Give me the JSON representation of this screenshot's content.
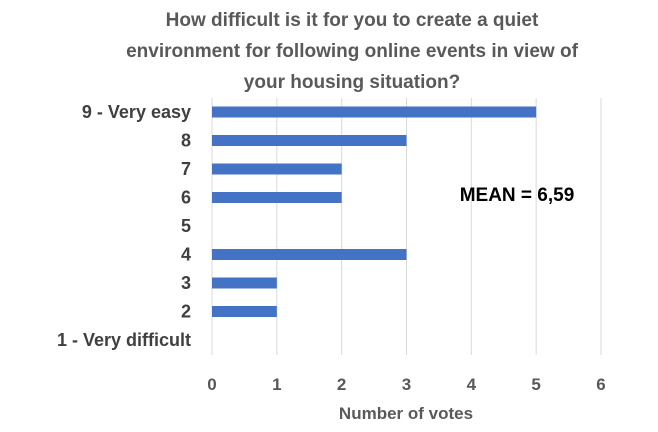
{
  "chart_data": {
    "type": "bar",
    "orientation": "horizontal",
    "title_lines": [
      "How difficult is it for you to create a quiet",
      "environment for following online events in view of",
      "your housing situation?"
    ],
    "categories": [
      "9 - Very easy",
      "8",
      "7",
      "6",
      "5",
      "4",
      "3",
      "2",
      "1 - Very difficult"
    ],
    "values": [
      5,
      3,
      2,
      2,
      0,
      3,
      1,
      1,
      0
    ],
    "xlabel": "Number of votes",
    "ylabel": "",
    "xlim": [
      0,
      6
    ],
    "x_ticks": [
      "0",
      "1",
      "2",
      "3",
      "4",
      "5",
      "6"
    ],
    "grid": "vertical",
    "annotation": "MEAN = 6,59",
    "bar_color": "#4472c4"
  }
}
